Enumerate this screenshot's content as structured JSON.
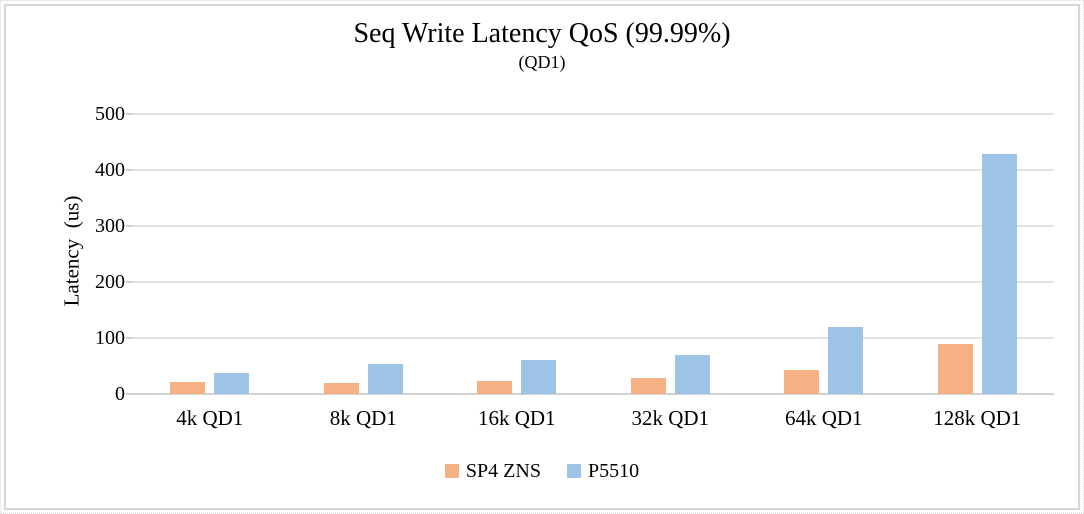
{
  "chart_data": {
    "type": "bar",
    "title": "Seq Write Latency QoS (99.99%)",
    "subtitle": "(QD1)",
    "ylabel": "Latency  (us)",
    "xlabel": "",
    "categories": [
      "4k QD1",
      "8k QD1",
      "16k QD1",
      "32k QD1",
      "64k QD1",
      "128k QD1"
    ],
    "series": [
      {
        "name": "SP4 ZNS",
        "color": "#F4B183",
        "values": [
          22,
          20,
          23,
          29,
          43,
          90
        ]
      },
      {
        "name": "P5510",
        "color": "#9DC3E6",
        "values": [
          38,
          53,
          61,
          69,
          120,
          428
        ]
      }
    ],
    "ylim": [
      0,
      500
    ],
    "ytick_step": 100,
    "ytick_labels": [
      "0",
      "100",
      "200",
      "300",
      "400",
      "500"
    ],
    "grid": true,
    "legend_position": "bottom",
    "gridline_color": "#E1E1E1",
    "text_color": "#000000"
  }
}
